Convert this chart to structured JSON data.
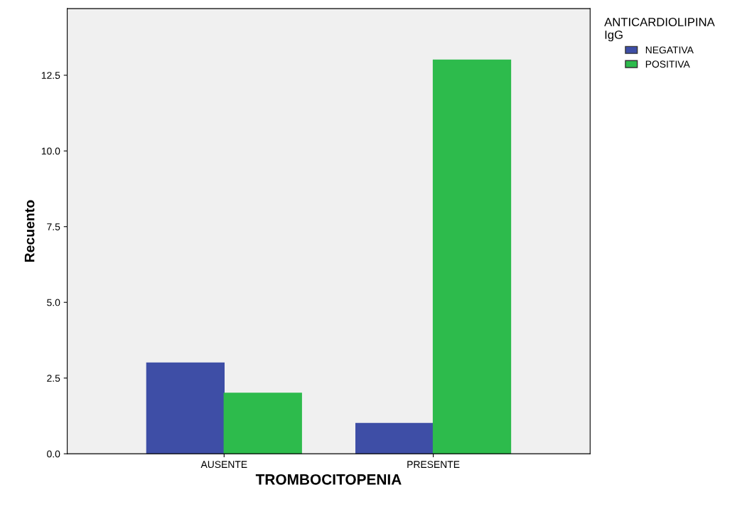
{
  "chart_data": {
    "type": "bar",
    "xlabel": "TROMBOCITOPENIA",
    "ylabel": "Recuento",
    "legend_title": "ANTICARDIOLIPINA\nIgG",
    "categories": [
      "AUSENTE",
      "PRESENTE"
    ],
    "series": [
      {
        "name": "NEGATIVA",
        "color": "#3e4ea6",
        "values": [
          3,
          1
        ]
      },
      {
        "name": "POSITIVA",
        "color": "#2dbb4c",
        "values": [
          2,
          13
        ]
      }
    ],
    "ylim": [
      0,
      14.7
    ],
    "yticks": [
      {
        "value": 0,
        "label": "0.0"
      },
      {
        "value": 2.5,
        "label": "2.5"
      },
      {
        "value": 5,
        "label": "5.0"
      },
      {
        "value": 7.5,
        "label": "7.5"
      },
      {
        "value": 10,
        "label": "10.0"
      },
      {
        "value": 12.5,
        "label": "12.5"
      }
    ],
    "grid": false,
    "legend": "top right"
  }
}
